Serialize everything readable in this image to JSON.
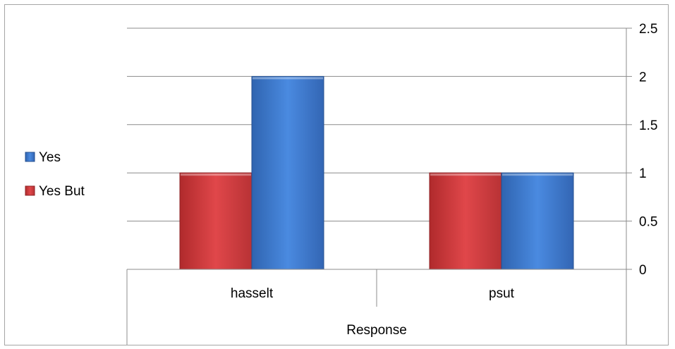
{
  "chart_data": {
    "type": "bar",
    "categories": [
      "hasselt",
      "psut"
    ],
    "category_group_label": "Response",
    "series": [
      {
        "name": "Yes But",
        "values": [
          1,
          1
        ],
        "color": "#c0393b"
      },
      {
        "name": "Yes",
        "values": [
          2,
          1
        ],
        "color": "#3f79c9"
      }
    ],
    "ylim": [
      0,
      2.5
    ],
    "yticks": [
      "0",
      "0.5",
      "1",
      "1.5",
      "2",
      "2.5"
    ],
    "y_axis_side": "right",
    "grid": true,
    "legend_position": "left",
    "legend_order": [
      "Yes",
      "Yes But"
    ]
  }
}
